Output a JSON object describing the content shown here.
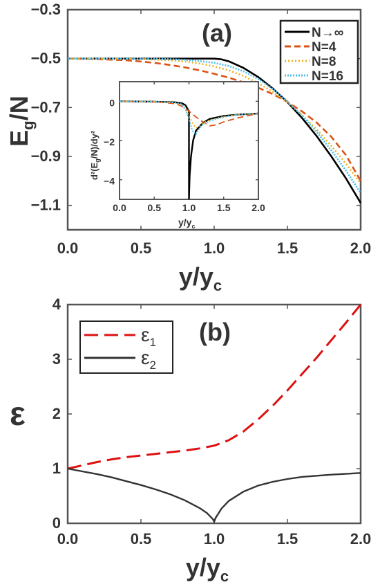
{
  "chart_data": [
    {
      "type": "line",
      "panel_label": "(a)",
      "xlabel": "y/y",
      "xlabel_sub": "c",
      "ylabel": "E",
      "ylabel_sub": "g",
      "ylabel_suffix": "/N",
      "xlim": [
        0,
        2.0
      ],
      "ylim": [
        -1.2,
        -0.3
      ],
      "xticks": [
        "0.0",
        "0.5",
        "1.0",
        "1.5",
        "2.0"
      ],
      "yticks": [
        "-1.1",
        "-0.9",
        "-0.7",
        "-0.5",
        "-0.3"
      ],
      "ytick_values": [
        -1.1,
        -0.9,
        -0.7,
        -0.5,
        -0.3
      ],
      "legend_position": "top-right",
      "series": [
        {
          "name": "N→∞",
          "color": "#000000",
          "dash": "solid",
          "x": [
            0,
            0.2,
            0.4,
            0.6,
            0.8,
            0.9,
            1.0,
            1.05,
            1.1,
            1.2,
            1.3,
            1.4,
            1.5,
            1.6,
            1.7,
            1.8,
            1.9,
            2.0
          ],
          "y": [
            -0.5,
            -0.5,
            -0.5,
            -0.5,
            -0.5,
            -0.5,
            -0.5,
            -0.503,
            -0.511,
            -0.538,
            -0.575,
            -0.622,
            -0.678,
            -0.743,
            -0.817,
            -0.9,
            -0.99,
            -1.09
          ]
        },
        {
          "name": "N=4",
          "color": "#d95319",
          "dash": "dashed",
          "x": [
            0,
            0.2,
            0.4,
            0.5,
            0.6,
            0.7,
            0.8,
            0.9,
            1.0,
            1.1,
            1.2,
            1.3,
            1.4,
            1.5,
            1.6,
            1.7,
            1.8,
            1.9,
            2.0
          ],
          "y": [
            -0.5,
            -0.502,
            -0.507,
            -0.512,
            -0.518,
            -0.526,
            -0.536,
            -0.548,
            -0.562,
            -0.578,
            -0.597,
            -0.619,
            -0.645,
            -0.677,
            -0.716,
            -0.762,
            -0.82,
            -0.895,
            -1.0
          ]
        },
        {
          "name": "N=8",
          "color": "#edb120",
          "dash": "dotted",
          "x": [
            0,
            0.2,
            0.4,
            0.5,
            0.6,
            0.7,
            0.8,
            0.9,
            1.0,
            1.1,
            1.2,
            1.3,
            1.4,
            1.5,
            1.6,
            1.7,
            1.8,
            1.9,
            2.0
          ],
          "y": [
            -0.5,
            -0.5,
            -0.501,
            -0.502,
            -0.504,
            -0.507,
            -0.512,
            -0.52,
            -0.532,
            -0.548,
            -0.571,
            -0.6,
            -0.636,
            -0.679,
            -0.731,
            -0.79,
            -0.857,
            -0.93,
            -1.01
          ]
        },
        {
          "name": "N=16",
          "color": "#4dbeee",
          "dash": "dashdot",
          "x": [
            0,
            0.2,
            0.4,
            0.6,
            0.7,
            0.8,
            0.9,
            1.0,
            1.1,
            1.2,
            1.3,
            1.4,
            1.5,
            1.6,
            1.7,
            1.8,
            1.9,
            2.0
          ],
          "y": [
            -0.5,
            -0.5,
            -0.5,
            -0.501,
            -0.502,
            -0.505,
            -0.51,
            -0.517,
            -0.53,
            -0.552,
            -0.583,
            -0.624,
            -0.674,
            -0.733,
            -0.8,
            -0.875,
            -0.958,
            -1.05
          ]
        }
      ],
      "inset": {
        "ylabel": "d²(E",
        "ylabel_sub": "g",
        "ylabel_suffix": "/N)/dy²",
        "xlabel": "y/y",
        "xlabel_sub": "c",
        "xlim": [
          0,
          2.0
        ],
        "ylim": [
          -5,
          1
        ],
        "xticks": [
          "0.0",
          "0.5",
          "1.0",
          "1.5",
          "2.0"
        ],
        "yticks": [
          "-4",
          "-2",
          "0"
        ],
        "ytick_values": [
          -4,
          -2,
          0
        ],
        "series": [
          {
            "name": "N→∞",
            "x": [
              0,
              0.5,
              0.8,
              0.9,
              0.95,
              0.99,
              1.0,
              1.0,
              1.01,
              1.03,
              1.06,
              1.1,
              1.2,
              1.3,
              1.5,
              1.7,
              2.0
            ],
            "y": [
              0,
              -0.02,
              -0.05,
              -0.1,
              -0.2,
              -0.45,
              -0.5,
              -5,
              -3.8,
              -2.8,
              -2.0,
              -1.5,
              -1.1,
              -0.9,
              -0.75,
              -0.68,
              -0.62
            ]
          },
          {
            "name": "N=4",
            "x": [
              0,
              0.3,
              0.6,
              0.8,
              0.9,
              1.0,
              1.1,
              1.2,
              1.3,
              1.4,
              1.5,
              1.7,
              2.0
            ],
            "y": [
              0,
              -0.02,
              -0.05,
              -0.12,
              -0.25,
              -0.5,
              -0.8,
              -1.05,
              -1.25,
              -1.2,
              -1.05,
              -0.85,
              -0.62
            ]
          },
          {
            "name": "N=8",
            "x": [
              0,
              0.5,
              0.8,
              0.9,
              1.0,
              1.05,
              1.1,
              1.15,
              1.2,
              1.3,
              1.5,
              1.7,
              2.0
            ],
            "y": [
              0,
              -0.02,
              -0.08,
              -0.2,
              -0.7,
              -1.1,
              -1.35,
              -1.3,
              -1.1,
              -0.95,
              -0.78,
              -0.68,
              -0.62
            ]
          },
          {
            "name": "N=16",
            "x": [
              0,
              0.5,
              0.8,
              0.9,
              0.95,
              1.0,
              1.05,
              1.1,
              1.15,
              1.2,
              1.3,
              1.5,
              1.7,
              2.0
            ],
            "y": [
              0,
              -0.02,
              -0.06,
              -0.15,
              -0.4,
              -0.9,
              -1.5,
              -1.7,
              -1.4,
              -1.2,
              -1.0,
              -0.8,
              -0.68,
              -0.62
            ]
          }
        ]
      }
    },
    {
      "type": "line",
      "panel_label": "(b)",
      "xlabel": "y/y",
      "xlabel_sub": "c",
      "ylabel": "ε",
      "xlim": [
        0,
        2.0
      ],
      "ylim": [
        0,
        4
      ],
      "xticks": [
        "0.0",
        "0.5",
        "1.0",
        "1.5",
        "2.0"
      ],
      "yticks": [
        "0",
        "1",
        "2",
        "3",
        "4"
      ],
      "ytick_values": [
        0,
        1,
        2,
        3,
        4
      ],
      "legend_position": "top-left",
      "series": [
        {
          "name": "ε",
          "name_sub": "1",
          "color": "#dd1111",
          "dash": "dashed",
          "x": [
            0,
            0.1,
            0.2,
            0.3,
            0.4,
            0.5,
            0.6,
            0.7,
            0.8,
            0.9,
            1.0,
            1.1,
            1.2,
            1.3,
            1.4,
            1.5,
            1.6,
            1.7,
            1.8,
            1.9,
            2.0
          ],
          "y": [
            1.0,
            1.06,
            1.12,
            1.17,
            1.21,
            1.24,
            1.27,
            1.3,
            1.33,
            1.37,
            1.42,
            1.52,
            1.68,
            1.9,
            2.15,
            2.43,
            2.73,
            3.03,
            3.35,
            3.67,
            4.0
          ]
        },
        {
          "name": "ε",
          "name_sub": "2",
          "color": "#333333",
          "dash": "solid",
          "x": [
            0,
            0.1,
            0.2,
            0.3,
            0.4,
            0.5,
            0.6,
            0.7,
            0.8,
            0.9,
            0.95,
            0.99,
            1.0,
            1.01,
            1.05,
            1.1,
            1.2,
            1.3,
            1.4,
            1.5,
            1.6,
            1.8,
            2.0
          ],
          "y": [
            1.0,
            0.95,
            0.9,
            0.84,
            0.77,
            0.7,
            0.62,
            0.53,
            0.42,
            0.28,
            0.19,
            0.08,
            0.03,
            0.1,
            0.27,
            0.41,
            0.58,
            0.69,
            0.76,
            0.81,
            0.85,
            0.89,
            0.92
          ]
        }
      ]
    }
  ]
}
